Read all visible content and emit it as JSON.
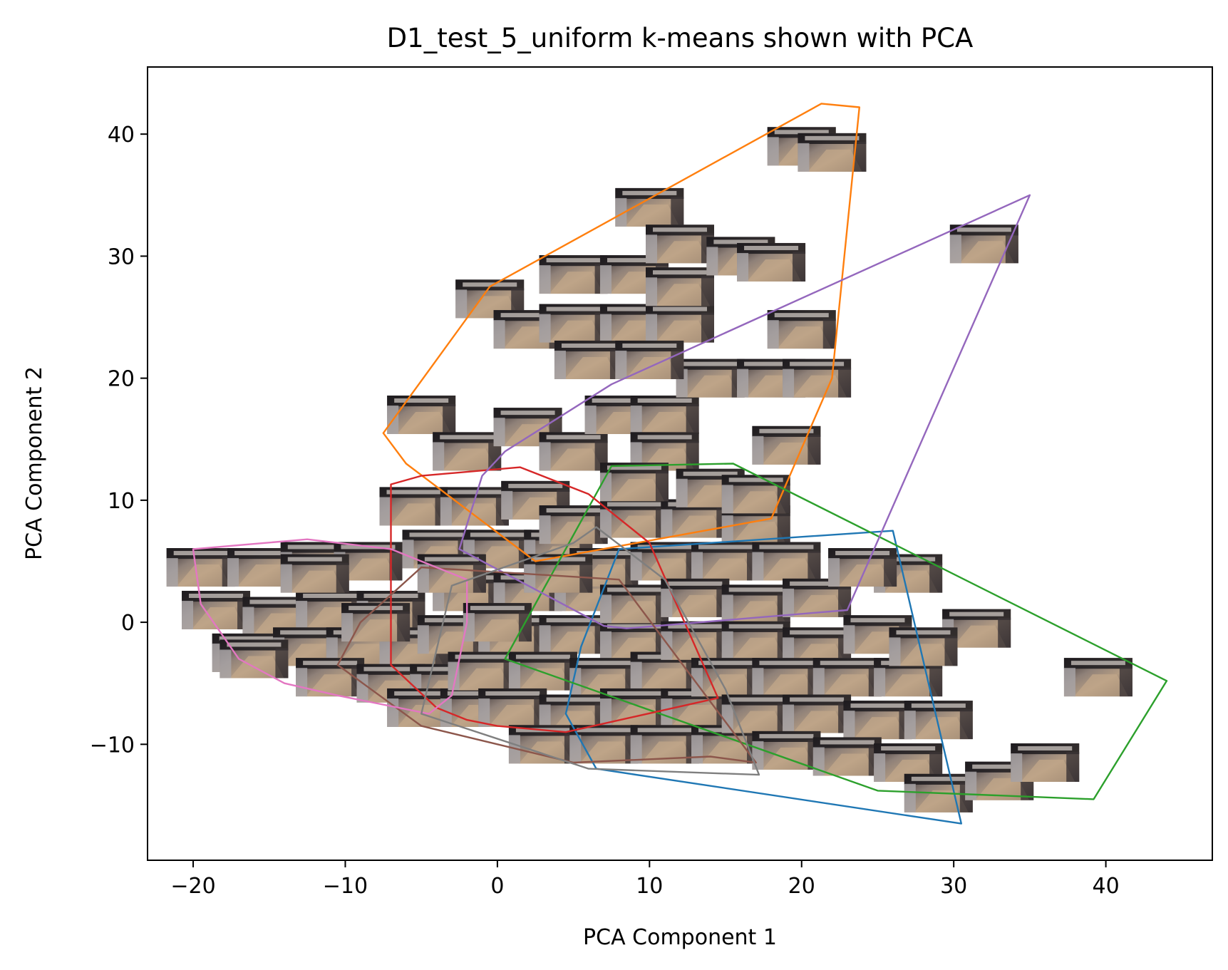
{
  "chart_data": {
    "type": "scatter",
    "title": "D1_test_5_uniform k-means shown with PCA",
    "xlabel": "PCA Component 1",
    "ylabel": "PCA Component 2",
    "xlim": [
      -23,
      47
    ],
    "ylim": [
      -19.5,
      45.5
    ],
    "xticks": [
      -20,
      -10,
      0,
      10,
      20,
      30,
      40
    ],
    "xtick_labels": [
      "−20",
      "−10",
      "0",
      "10",
      "20",
      "30",
      "40"
    ],
    "yticks": [
      -10,
      0,
      10,
      20,
      30,
      40
    ],
    "ytick_labels": [
      "−10",
      "0",
      "10",
      "20",
      "30",
      "40"
    ],
    "grid": false,
    "legend": "none",
    "markers": "image thumbnails (kitchen frames)",
    "clusters": [
      {
        "color": "#1f77b4",
        "hull": [
          [
            6.5,
            -12
          ],
          [
            4.5,
            -7.5
          ],
          [
            5.5,
            -2
          ],
          [
            8,
            6
          ],
          [
            26,
            7.5
          ],
          [
            30.5,
            -16.5
          ]
        ]
      },
      {
        "color": "#ff7f0e",
        "hull": [
          [
            -7.5,
            15.5
          ],
          [
            -6,
            13
          ],
          [
            2.5,
            5
          ],
          [
            18,
            8.5
          ],
          [
            22,
            20
          ],
          [
            23.8,
            42.2
          ],
          [
            21.3,
            42.5
          ],
          [
            -0.5,
            27.5
          ]
        ]
      },
      {
        "color": "#2ca02c",
        "hull": [
          [
            0.5,
            -3
          ],
          [
            7.5,
            12.8
          ],
          [
            15.5,
            13
          ],
          [
            44,
            -4.8
          ],
          [
            39.2,
            -14.5
          ],
          [
            25,
            -13.8
          ]
        ]
      },
      {
        "color": "#d62728",
        "hull": [
          [
            -7,
            -3.5
          ],
          [
            -4,
            -7
          ],
          [
            -2,
            -8
          ],
          [
            0,
            -8.5
          ],
          [
            4.5,
            -9
          ],
          [
            14.5,
            -6.2
          ],
          [
            10,
            6.5
          ],
          [
            6,
            10.5
          ],
          [
            1.5,
            12.7
          ],
          [
            -5,
            12
          ],
          [
            -7,
            11.3
          ]
        ]
      },
      {
        "color": "#9467bd",
        "hull": [
          [
            -2.5,
            6
          ],
          [
            -1,
            12
          ],
          [
            0.5,
            14
          ],
          [
            7.5,
            19.5
          ],
          [
            35,
            35
          ],
          [
            23,
            1
          ],
          [
            8.5,
            -0.5
          ],
          [
            7,
            -0.3
          ]
        ]
      },
      {
        "color": "#8c564b",
        "hull": [
          [
            -10.5,
            -3.5
          ],
          [
            -5,
            -8.5
          ],
          [
            5,
            -11.5
          ],
          [
            14,
            -11
          ],
          [
            17,
            -11.5
          ],
          [
            8,
            3.5
          ],
          [
            -5,
            4.5
          ],
          [
            -9,
            0
          ]
        ]
      },
      {
        "color": "#e377c2",
        "hull": [
          [
            -20,
            6
          ],
          [
            -19.5,
            1.5
          ],
          [
            -17,
            -3
          ],
          [
            -14,
            -5
          ],
          [
            -10.5,
            -6
          ],
          [
            -4.5,
            -7.5
          ],
          [
            -3,
            -6
          ],
          [
            -2,
            0
          ],
          [
            -2,
            3.5
          ],
          [
            -7,
            6
          ],
          [
            -12.5,
            6.8
          ]
        ]
      },
      {
        "color": "#7f7f7f",
        "hull": [
          [
            -5,
            -7.5
          ],
          [
            6,
            -12
          ],
          [
            17.2,
            -12.5
          ],
          [
            15,
            -5.5
          ],
          [
            11,
            3.5
          ],
          [
            6.5,
            7.8
          ],
          [
            5,
            6.5
          ],
          [
            -3,
            3
          ]
        ]
      }
    ],
    "thumbnail_points": [
      [
        -19.5,
        4.5
      ],
      [
        -15.5,
        4.5
      ],
      [
        -12,
        5
      ],
      [
        -8.5,
        5
      ],
      [
        -18.5,
        1
      ],
      [
        -14.5,
        0.5
      ],
      [
        -11,
        1
      ],
      [
        -7,
        1
      ],
      [
        -16.5,
        -2.5
      ],
      [
        -12.5,
        -2
      ],
      [
        -9,
        -2
      ],
      [
        -5.5,
        -2
      ],
      [
        -11,
        -4.5
      ],
      [
        -7,
        -5
      ],
      [
        -3.5,
        -5
      ],
      [
        -5,
        -7
      ],
      [
        -1.5,
        -7
      ],
      [
        -5.5,
        9.5
      ],
      [
        -1.5,
        9.5
      ],
      [
        2.5,
        10
      ],
      [
        -4,
        6
      ],
      [
        0,
        6
      ],
      [
        4,
        6
      ],
      [
        -2,
        2.5
      ],
      [
        2,
        2.5
      ],
      [
        6,
        2.5
      ],
      [
        -3,
        -1
      ],
      [
        1,
        -1
      ],
      [
        5,
        -1
      ],
      [
        9,
        -1.5
      ],
      [
        -1,
        -4
      ],
      [
        3,
        -4
      ],
      [
        7,
        -4.5
      ],
      [
        11,
        -4
      ],
      [
        1,
        -7
      ],
      [
        5,
        -7.5
      ],
      [
        9,
        -7
      ],
      [
        13,
        -7
      ],
      [
        3,
        -10
      ],
      [
        7,
        -10
      ],
      [
        11,
        -10
      ],
      [
        15,
        -10
      ],
      [
        5,
        8
      ],
      [
        9,
        8.5
      ],
      [
        13,
        8.5
      ],
      [
        17,
        8
      ],
      [
        7,
        4.5
      ],
      [
        11,
        5
      ],
      [
        15,
        5
      ],
      [
        19,
        5
      ],
      [
        9,
        1.5
      ],
      [
        13,
        2
      ],
      [
        17,
        1.5
      ],
      [
        21,
        2
      ],
      [
        13,
        -1.5
      ],
      [
        17,
        -1.5
      ],
      [
        21,
        -2
      ],
      [
        25,
        -1
      ],
      [
        15,
        -4.5
      ],
      [
        19,
        -4.5
      ],
      [
        23,
        -4.5
      ],
      [
        27,
        -4.5
      ],
      [
        17,
        -7.5
      ],
      [
        21,
        -7.5
      ],
      [
        25,
        -8
      ],
      [
        29,
        -8
      ],
      [
        19,
        -10.5
      ],
      [
        23,
        -11
      ],
      [
        27,
        -11.5
      ],
      [
        29,
        -14
      ],
      [
        33,
        -13
      ],
      [
        36,
        -11.5
      ],
      [
        39.5,
        -4.5
      ],
      [
        31.5,
        -0.5
      ],
      [
        28,
        -2
      ],
      [
        27,
        4
      ],
      [
        24,
        4.5
      ],
      [
        -5,
        17
      ],
      [
        -2,
        14
      ],
      [
        2,
        16
      ],
      [
        5,
        14
      ],
      [
        8,
        17
      ],
      [
        11,
        17
      ],
      [
        14,
        20
      ],
      [
        18,
        20
      ],
      [
        21,
        20
      ],
      [
        19,
        14.5
      ],
      [
        11,
        14
      ],
      [
        9,
        11.5
      ],
      [
        14,
        11
      ],
      [
        17,
        10.5
      ],
      [
        -0.5,
        26.5
      ],
      [
        2,
        24
      ],
      [
        5,
        24.5
      ],
      [
        9,
        24.5
      ],
      [
        12,
        24.5
      ],
      [
        6,
        21.5
      ],
      [
        10,
        21.5
      ],
      [
        5,
        28.5
      ],
      [
        9,
        28.5
      ],
      [
        12,
        27.5
      ],
      [
        10,
        34
      ],
      [
        12,
        31
      ],
      [
        16,
        30
      ],
      [
        18,
        29.5
      ],
      [
        20,
        24
      ],
      [
        20,
        39
      ],
      [
        22,
        38.5
      ],
      [
        32,
        31
      ],
      [
        -16,
        -3
      ],
      [
        -12,
        4
      ],
      [
        -8,
        0
      ],
      [
        -3,
        4
      ],
      [
        0,
        0
      ],
      [
        4,
        4
      ]
    ]
  }
}
